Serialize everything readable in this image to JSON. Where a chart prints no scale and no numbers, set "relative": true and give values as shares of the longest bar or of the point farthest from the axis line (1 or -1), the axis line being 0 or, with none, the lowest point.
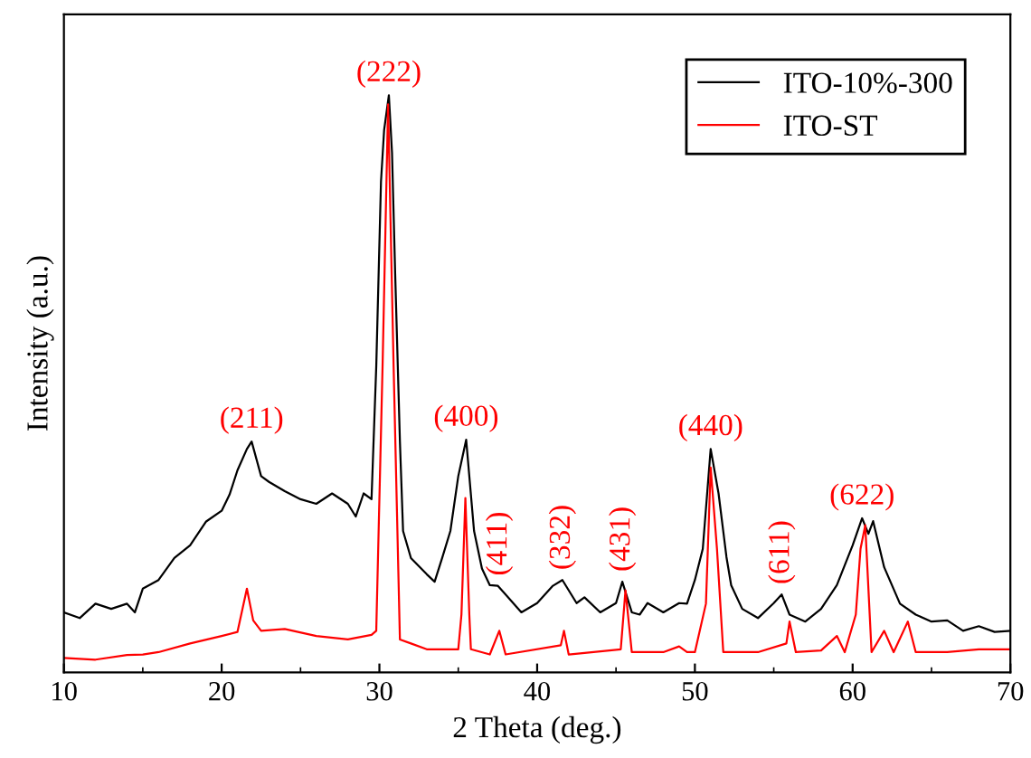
{
  "chart_data": {
    "type": "line",
    "relative": true,
    "xlabel": "2 Theta (deg.)",
    "ylabel": "Intensity (a.u.)",
    "xlim": [
      10,
      70
    ],
    "xticks": [
      10,
      20,
      30,
      40,
      50,
      60,
      70
    ],
    "legend": "top right",
    "grid": false,
    "marker": "none",
    "line_style": "solid",
    "series": [
      {
        "name": "ITO-10%-300",
        "color": "#000000",
        "x": [
          10,
          11,
          12,
          13,
          14,
          14.5,
          15,
          16,
          17,
          18,
          19,
          20,
          20.5,
          21,
          21.6,
          21.9,
          22.5,
          23,
          24,
          25,
          26,
          27,
          28,
          28.5,
          29,
          29.5,
          29.8,
          30.1,
          30.3,
          30.6,
          30.8,
          31,
          31.3,
          31.5,
          32,
          33,
          33.5,
          34,
          34.5,
          35,
          35.5,
          36,
          36.5,
          37,
          37.5,
          38,
          39,
          40,
          41,
          41.6,
          42.5,
          43,
          44,
          45,
          45.4,
          46,
          46.5,
          47,
          48,
          49,
          49.5,
          50,
          50.5,
          51,
          51.5,
          52,
          52.3,
          53,
          54,
          55,
          55.5,
          56,
          57,
          58,
          59,
          60,
          60.6,
          61,
          61.3,
          62,
          63,
          64,
          65,
          66,
          67,
          68,
          69,
          70
        ],
        "values": [
          0.104,
          0.094,
          0.119,
          0.11,
          0.119,
          0.104,
          0.145,
          0.16,
          0.198,
          0.22,
          0.261,
          0.28,
          0.308,
          0.35,
          0.387,
          0.4,
          0.34,
          0.33,
          0.314,
          0.3,
          0.292,
          0.31,
          0.292,
          0.27,
          0.31,
          0.3,
          0.53,
          0.85,
          0.94,
          1.0,
          0.9,
          0.69,
          0.4,
          0.245,
          0.198,
          0.17,
          0.157,
          0.2,
          0.245,
          0.34,
          0.403,
          0.245,
          0.18,
          0.151,
          0.15,
          0.135,
          0.104,
          0.12,
          0.15,
          0.16,
          0.12,
          0.13,
          0.104,
          0.12,
          0.157,
          0.104,
          0.1,
          0.12,
          0.104,
          0.12,
          0.119,
          0.16,
          0.214,
          0.387,
          0.31,
          0.2,
          0.151,
          0.11,
          0.094,
          0.12,
          0.135,
          0.1,
          0.088,
          0.11,
          0.151,
          0.22,
          0.267,
          0.24,
          0.262,
          0.182,
          0.119,
          0.1,
          0.088,
          0.09,
          0.072,
          0.08,
          0.07,
          0.072
        ]
      },
      {
        "name": "ITO-ST",
        "color": "#ff0000",
        "x": [
          10,
          12,
          14,
          15,
          16,
          18,
          20,
          21,
          21.6,
          22,
          22.5,
          24,
          26,
          28,
          29.5,
          29.8,
          30.2,
          30.55,
          30.9,
          31.3,
          32,
          33,
          35,
          35.2,
          35.45,
          35.7,
          35.8,
          37,
          37.6,
          38,
          41.5,
          41.7,
          42,
          45.3,
          45.6,
          46,
          48,
          49,
          49.5,
          50,
          50.7,
          51.0,
          51.4,
          51.8,
          54,
          55.8,
          56,
          56.4,
          58,
          59,
          59.5,
          60.2,
          60.5,
          60.8,
          61.2,
          62,
          62.6,
          63.5,
          64,
          66,
          68,
          70
        ],
        "values": [
          0.025,
          0.022,
          0.03,
          0.031,
          0.035,
          0.05,
          0.063,
          0.07,
          0.145,
          0.09,
          0.072,
          0.075,
          0.063,
          0.057,
          0.065,
          0.072,
          0.53,
          0.984,
          0.53,
          0.057,
          0.05,
          0.04,
          0.04,
          0.1,
          0.302,
          0.1,
          0.04,
          0.031,
          0.072,
          0.031,
          0.047,
          0.072,
          0.031,
          0.04,
          0.142,
          0.035,
          0.035,
          0.045,
          0.035,
          0.035,
          0.119,
          0.355,
          0.214,
          0.035,
          0.035,
          0.05,
          0.088,
          0.035,
          0.038,
          0.063,
          0.035,
          0.1,
          0.214,
          0.255,
          0.035,
          0.072,
          0.035,
          0.088,
          0.035,
          0.035,
          0.04,
          0.04
        ]
      }
    ],
    "annotations": [
      {
        "text": "(211)",
        "x": 21.9,
        "y": 0.4
      },
      {
        "text": "(222)",
        "x": 30.6,
        "y": 1.0
      },
      {
        "text": "(400)",
        "x": 35.5,
        "y": 0.403
      },
      {
        "text": "(411)",
        "x": 37.6,
        "y": 0.15
      },
      {
        "text": "(332)",
        "x": 41.6,
        "y": 0.16
      },
      {
        "text": "(431)",
        "x": 45.4,
        "y": 0.157
      },
      {
        "text": "(440)",
        "x": 51.0,
        "y": 0.387
      },
      {
        "text": "(611)",
        "x": 55.5,
        "y": 0.135
      },
      {
        "text": "(622)",
        "x": 60.6,
        "y": 0.267
      }
    ]
  }
}
